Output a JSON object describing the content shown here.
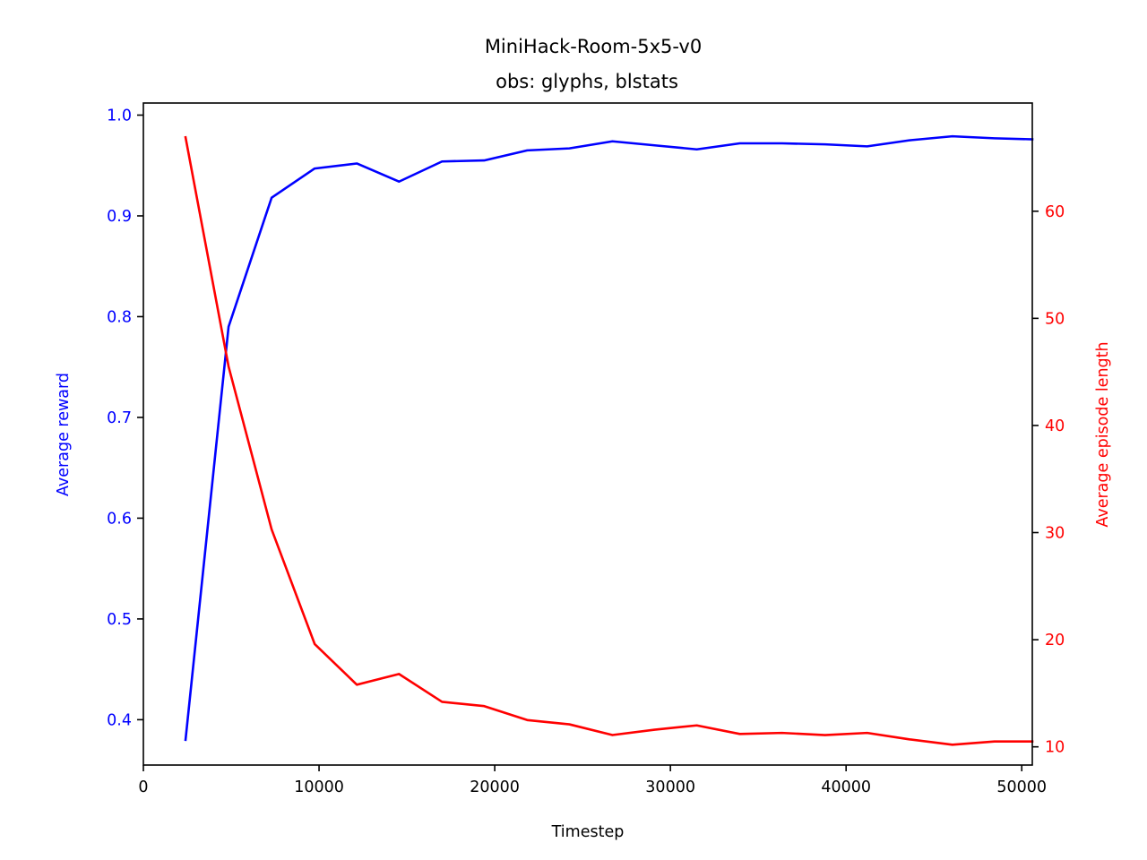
{
  "chart_data": {
    "type": "line",
    "title": "MiniHack-Room-5x5-v0",
    "subtitle": "obs: glyphs, blstats",
    "xlabel": "Timestep",
    "ylabel_left": "Average reward",
    "ylabel_right": "Average episode length",
    "xlim": [
      0,
      50600
    ],
    "ylim_left": [
      0.355,
      1.012
    ],
    "ylim_right": [
      8.3,
      70.1
    ],
    "x_ticks": [
      0,
      10000,
      20000,
      30000,
      40000,
      50000
    ],
    "y_ticks_left": [
      0.4,
      0.5,
      0.6,
      0.7,
      0.8,
      0.9,
      1.0
    ],
    "y_ticks_right": [
      10,
      20,
      30,
      40,
      50,
      60
    ],
    "grid": false,
    "colors": {
      "left_axis": "#0000ff",
      "right_axis": "#ff0000",
      "axes": "#000000"
    },
    "x": [
      2400,
      4850,
      7300,
      9750,
      12150,
      14550,
      17000,
      19400,
      21850,
      24250,
      26700,
      29100,
      31500,
      33950,
      36350,
      38800,
      41200,
      43600,
      46050,
      48450,
      50600
    ],
    "series": [
      {
        "name": "Average reward",
        "axis": "left",
        "color": "#0000ff",
        "values": [
          0.38,
          0.79,
          0.918,
          0.947,
          0.952,
          0.934,
          0.954,
          0.955,
          0.965,
          0.967,
          0.974,
          0.97,
          0.966,
          0.972,
          0.972,
          0.971,
          0.969,
          0.975,
          0.979,
          0.977,
          0.976
        ]
      },
      {
        "name": "Average episode length",
        "axis": "right",
        "color": "#ff0000",
        "values": [
          66.9,
          45.5,
          30.3,
          19.6,
          15.8,
          16.8,
          14.2,
          13.8,
          12.5,
          12.1,
          11.1,
          11.6,
          12.0,
          11.2,
          11.3,
          11.1,
          11.3,
          10.7,
          10.2,
          10.5,
          10.5
        ]
      }
    ]
  }
}
